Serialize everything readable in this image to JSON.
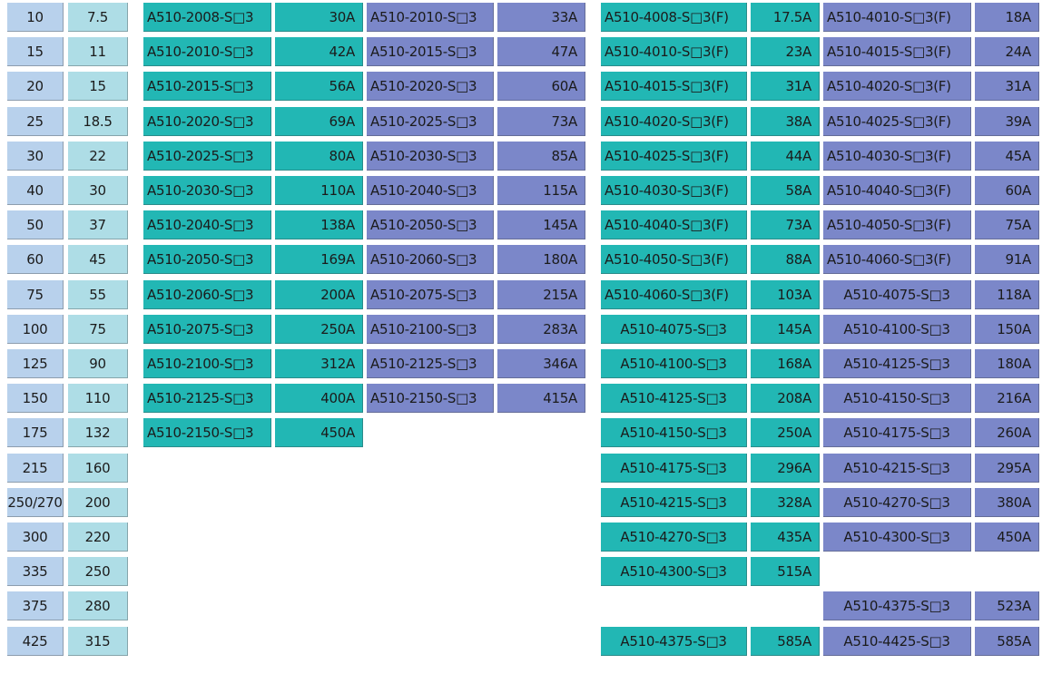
{
  "colors": {
    "hp_col": "#b8d1ec",
    "kw_col": "#aedde6",
    "teal": "#22b7b4",
    "purple": "#7b87c9"
  },
  "rows": [
    {
      "hp": "10",
      "kw": "7.5",
      "a": [
        "A510-2008-S□3",
        "30A"
      ],
      "b": [
        "A510-2010-S□3",
        "33A"
      ],
      "c": [
        "A510-4008-S□3(F)",
        "17.5A"
      ],
      "d": [
        "A510-4010-S□3(F)",
        "18A"
      ]
    },
    {
      "hp": "15",
      "kw": "11",
      "a": [
        "A510-2010-S□3",
        "42A"
      ],
      "b": [
        "A510-2015-S□3",
        "47A"
      ],
      "c": [
        "A510-4010-S□3(F)",
        "23A"
      ],
      "d": [
        "A510-4015-S□3(F)",
        "24A"
      ]
    },
    {
      "hp": "20",
      "kw": "15",
      "a": [
        "A510-2015-S□3",
        "56A"
      ],
      "b": [
        "A510-2020-S□3",
        "60A"
      ],
      "c": [
        "A510-4015-S□3(F)",
        "31A"
      ],
      "d": [
        "A510-4020-S□3(F)",
        "31A"
      ]
    },
    {
      "hp": "25",
      "kw": "18.5",
      "a": [
        "A510-2020-S□3",
        "69A"
      ],
      "b": [
        "A510-2025-S□3",
        "73A"
      ],
      "c": [
        "A510-4020-S□3(F)",
        "38A"
      ],
      "d": [
        "A510-4025-S□3(F)",
        "39A"
      ]
    },
    {
      "hp": "30",
      "kw": "22",
      "a": [
        "A510-2025-S□3",
        "80A"
      ],
      "b": [
        "A510-2030-S□3",
        "85A"
      ],
      "c": [
        "A510-4025-S□3(F)",
        "44A"
      ],
      "d": [
        "A510-4030-S□3(F)",
        "45A"
      ]
    },
    {
      "hp": "40",
      "kw": "30",
      "a": [
        "A510-2030-S□3",
        "110A"
      ],
      "b": [
        "A510-2040-S□3",
        "115A"
      ],
      "c": [
        "A510-4030-S□3(F)",
        "58A"
      ],
      "d": [
        "A510-4040-S□3(F)",
        "60A"
      ]
    },
    {
      "hp": "50",
      "kw": "37",
      "a": [
        "A510-2040-S□3",
        "138A"
      ],
      "b": [
        "A510-2050-S□3",
        "145A"
      ],
      "c": [
        "A510-4040-S□3(F)",
        "73A"
      ],
      "d": [
        "A510-4050-S□3(F)",
        "75A"
      ]
    },
    {
      "hp": "60",
      "kw": "45",
      "a": [
        "A510-2050-S□3",
        "169A"
      ],
      "b": [
        "A510-2060-S□3",
        "180A"
      ],
      "c": [
        "A510-4050-S□3(F)",
        "88A"
      ],
      "d": [
        "A510-4060-S□3(F)",
        "91A"
      ]
    },
    {
      "hp": "75",
      "kw": "55",
      "a": [
        "A510-2060-S□3",
        "200A"
      ],
      "b": [
        "A510-2075-S□3",
        "215A"
      ],
      "c": [
        "A510-4060-S□3(F)",
        "103A"
      ],
      "d": [
        "A510-4075-S□3",
        "118A"
      ]
    },
    {
      "hp": "100",
      "kw": "75",
      "a": [
        "A510-2075-S□3",
        "250A"
      ],
      "b": [
        "A510-2100-S□3",
        "283A"
      ],
      "c": [
        "A510-4075-S□3",
        "145A"
      ],
      "d": [
        "A510-4100-S□3",
        "150A"
      ]
    },
    {
      "hp": "125",
      "kw": "90",
      "a": [
        "A510-2100-S□3",
        "312A"
      ],
      "b": [
        "A510-2125-S□3",
        "346A"
      ],
      "c": [
        "A510-4100-S□3",
        "168A"
      ],
      "d": [
        "A510-4125-S□3",
        "180A"
      ]
    },
    {
      "hp": "150",
      "kw": "110",
      "a": [
        "A510-2125-S□3",
        "400A"
      ],
      "b": [
        "A510-2150-S□3",
        "415A"
      ],
      "c": [
        "A510-4125-S□3",
        "208A"
      ],
      "d": [
        "A510-4150-S□3",
        "216A"
      ]
    },
    {
      "hp": "175",
      "kw": "132",
      "a": [
        "A510-2150-S□3",
        "450A"
      ],
      "b": null,
      "c": [
        "A510-4150-S□3",
        "250A"
      ],
      "d": [
        "A510-4175-S□3",
        "260A"
      ]
    },
    {
      "hp": "215",
      "kw": "160",
      "a": null,
      "b": null,
      "c": [
        "A510-4175-S□3",
        "296A"
      ],
      "d": [
        "A510-4215-S□3",
        "295A"
      ]
    },
    {
      "hp": "250/270",
      "kw": "200",
      "a": null,
      "b": null,
      "c": [
        "A510-4215-S□3",
        "328A"
      ],
      "d": [
        "A510-4270-S□3",
        "380A"
      ]
    },
    {
      "hp": "300",
      "kw": "220",
      "a": null,
      "b": null,
      "c": [
        "A510-4270-S□3",
        "435A"
      ],
      "d": [
        "A510-4300-S□3",
        "450A"
      ]
    },
    {
      "hp": "335",
      "kw": "250",
      "a": null,
      "b": null,
      "c": [
        "A510-4300-S□3",
        "515A"
      ],
      "d": null
    },
    {
      "hp": "375",
      "kw": "280",
      "a": null,
      "b": null,
      "c": null,
      "d": [
        "A510-4375-S□3",
        "523A"
      ]
    },
    {
      "hp": "425",
      "kw": "315",
      "a": null,
      "b": null,
      "c": [
        "A510-4375-S□3",
        "585A"
      ],
      "d": [
        "A510-4425-S□3",
        "585A"
      ]
    }
  ]
}
